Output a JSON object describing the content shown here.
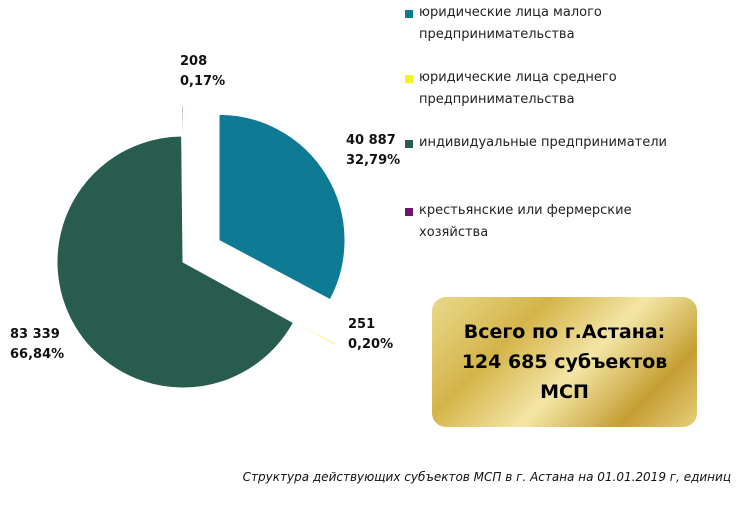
{
  "chart_data": {
    "type": "pie",
    "categories": [
      "юридические лица малого предпринимательства",
      "юридические лица среднего предпринимательства",
      "индивидуальные предприниматели",
      "крестьянские или фермерские хозяйства"
    ],
    "values": [
      40887,
      251,
      83339,
      208
    ],
    "percent_labels": [
      "32,79%",
      "0,20%",
      "66,84%",
      "0,17%"
    ],
    "value_labels": [
      "40 887",
      "251",
      "83 339",
      "208"
    ],
    "colors": [
      "#0f7a94",
      "#f6f21c",
      "#285c4f",
      "#6e1470"
    ],
    "legend_position": "right",
    "title": ""
  },
  "legend": {
    "items": [
      {
        "line1": "юридические лица малого",
        "line2": "предпринимательства",
        "color": "#0f7a94"
      },
      {
        "line1": "юридические лица среднего",
        "line2": "предпринимательства",
        "color": "#f6f21c"
      },
      {
        "line1": "индивидуальные предприниматели",
        "line2": "",
        "color": "#285c4f"
      },
      {
        "line1": "крестьянские или фермерские",
        "line2": "хозяйства",
        "color": "#6e1470"
      }
    ]
  },
  "total_box": {
    "line1": "Всего по г.Астана:",
    "line2": "124 685 субъектов",
    "line3": "МСП"
  },
  "caption": "Структура действующих субъектов МСП в г. Астана на 01.01.2019 г, единиц"
}
